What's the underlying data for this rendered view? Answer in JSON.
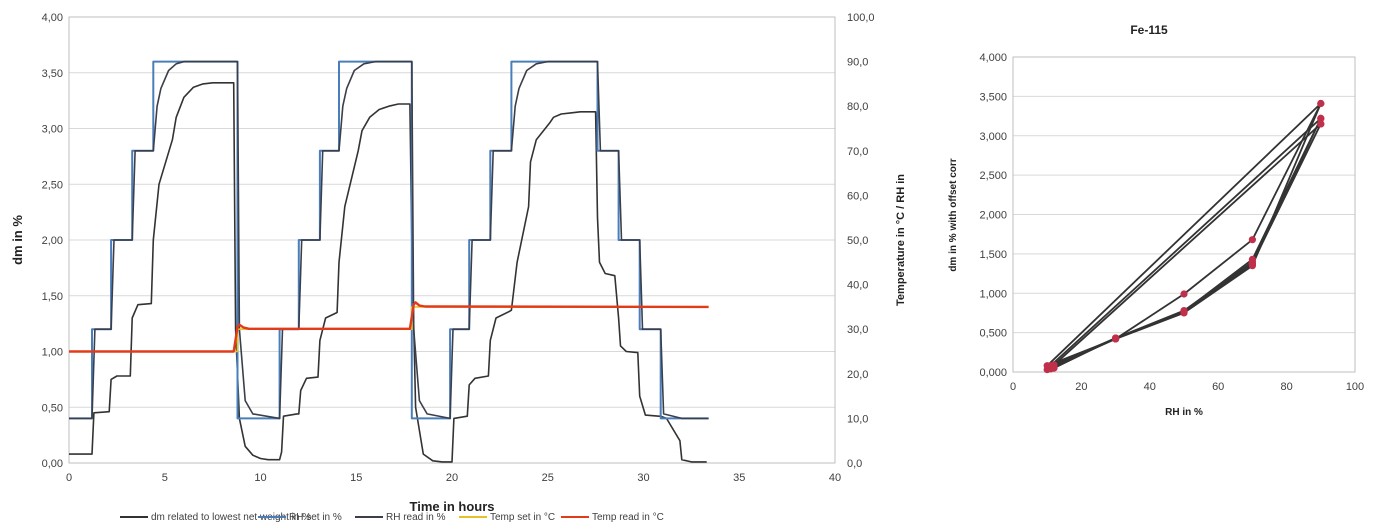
{
  "chart_data": [
    {
      "type": "line",
      "title": "",
      "xlabel": "Time in hours",
      "ylabel": "dm in %",
      "y2label": "Temperature in °C / RH in",
      "xlim": [
        0,
        40
      ],
      "ylim": [
        0,
        4
      ],
      "y2lim": [
        0,
        100
      ],
      "x_ticks": [
        "0",
        "5",
        "10",
        "15",
        "20",
        "25",
        "30",
        "35",
        "40"
      ],
      "y_ticks": [
        "0,00",
        "0,50",
        "1,00",
        "1,50",
        "2,00",
        "2,50",
        "3,00",
        "3,50",
        "4,00"
      ],
      "y2_ticks": [
        "0,0",
        "10,0",
        "20,0",
        "30,0",
        "40,0",
        "50,0",
        "60,0",
        "70,0",
        "80,0",
        "90,0",
        "100,0"
      ],
      "grid": true,
      "legend_position": "bottom",
      "series": [
        {
          "name": "dm  related to lowest net weight in   %",
          "color": "#333333",
          "axis": "left",
          "x": [
            0,
            1.2,
            1.3,
            2.1,
            2.2,
            2.5,
            3.2,
            3.3,
            3.6,
            4.3,
            4.4,
            4.7,
            5.4,
            5.6,
            6.0,
            6.5,
            7.0,
            7.5,
            8.0,
            8.6,
            8.7,
            8.9,
            9.2,
            9.6,
            10.0,
            10.4,
            10.8,
            11.0,
            11.1,
            11.2,
            11.9,
            12.0,
            12.1,
            12.4,
            13.0,
            13.1,
            13.4,
            14.0,
            14.1,
            14.4,
            15.1,
            15.3,
            15.7,
            16.2,
            16.7,
            17.2,
            17.8,
            17.9,
            18.1,
            18.5,
            19.0,
            19.5,
            19.8,
            19.9,
            20.0,
            20.1,
            20.8,
            20.9,
            21.2,
            21.9,
            22.0,
            22.3,
            23.0,
            23.1,
            23.4,
            24.0,
            24.1,
            24.4,
            25.1,
            25.3,
            25.7,
            26.2,
            26.7,
            27.4,
            27.5,
            27.6,
            27.7,
            28.0,
            28.5,
            28.7,
            28.8,
            29.1,
            29.7,
            29.8,
            30.1,
            30.8,
            30.9,
            31.2,
            31.9,
            32.0,
            32.5,
            33.3
          ],
          "y": [
            0.08,
            0.08,
            0.45,
            0.46,
            0.75,
            0.78,
            0.78,
            1.3,
            1.42,
            1.43,
            2.0,
            2.5,
            2.9,
            3.1,
            3.28,
            3.37,
            3.4,
            3.41,
            3.41,
            3.41,
            1.2,
            0.4,
            0.15,
            0.07,
            0.04,
            0.03,
            0.03,
            0.03,
            0.1,
            0.42,
            0.44,
            0.44,
            0.65,
            0.76,
            0.77,
            1.1,
            1.3,
            1.35,
            1.8,
            2.3,
            2.8,
            2.98,
            3.1,
            3.17,
            3.2,
            3.22,
            3.22,
            2.0,
            0.5,
            0.08,
            0.02,
            0.01,
            0.01,
            0.01,
            0.01,
            0.4,
            0.42,
            0.7,
            0.76,
            0.78,
            1.1,
            1.3,
            1.36,
            1.37,
            1.8,
            2.3,
            2.7,
            2.9,
            3.05,
            3.1,
            3.13,
            3.14,
            3.15,
            3.15,
            3.15,
            2.2,
            1.8,
            1.7,
            1.68,
            1.3,
            1.05,
            1.0,
            0.99,
            0.6,
            0.43,
            0.42,
            0.42,
            0.4,
            0.2,
            0.03,
            0.01,
            0.01
          ]
        },
        {
          "name": "RH set in %",
          "color": "#4a7ebb",
          "axis": "right",
          "x": [
            0,
            1.2,
            1.2,
            2.2,
            2.2,
            3.3,
            3.3,
            4.4,
            4.4,
            5.0,
            5.0,
            8.8,
            8.8,
            11.0,
            11.0,
            12.0,
            12.0,
            13.1,
            13.1,
            14.1,
            14.1,
            15.0,
            15.0,
            17.9,
            17.9,
            19.9,
            19.9,
            20.9,
            20.9,
            22.0,
            22.0,
            23.1,
            23.1,
            24.1,
            24.1,
            25.0,
            25.0,
            27.6,
            27.6,
            28.7,
            28.7,
            29.8,
            29.8,
            30.9,
            30.9,
            32.0,
            32.0,
            33.4
          ],
          "y": [
            10,
            10,
            30,
            30,
            50,
            50,
            70,
            70,
            90,
            90,
            90,
            90,
            10,
            10,
            30,
            30,
            50,
            50,
            70,
            70,
            90,
            90,
            90,
            90,
            10,
            10,
            30,
            30,
            50,
            50,
            70,
            70,
            90,
            90,
            90,
            90,
            90,
            90,
            70,
            70,
            50,
            50,
            30,
            30,
            10,
            10,
            10,
            10
          ]
        },
        {
          "name": "RH read in %",
          "color": "#3a3f4a",
          "axis": "right",
          "x": [
            0,
            1.2,
            1.35,
            2.2,
            2.35,
            3.3,
            3.45,
            4.4,
            4.6,
            4.8,
            5.2,
            5.6,
            6.0,
            8.8,
            8.9,
            9.2,
            9.6,
            11.0,
            11.15,
            12.0,
            12.15,
            13.1,
            13.25,
            14.1,
            14.3,
            14.5,
            14.9,
            15.4,
            16.0,
            17.9,
            18.0,
            18.3,
            18.7,
            19.9,
            20.05,
            20.9,
            21.05,
            22.0,
            22.15,
            23.1,
            23.3,
            23.5,
            23.9,
            24.4,
            25.0,
            27.6,
            27.75,
            28.7,
            28.85,
            29.8,
            29.95,
            30.9,
            31.05,
            32.0,
            32.2,
            33.4
          ],
          "y": [
            10,
            10,
            30,
            30,
            50,
            50,
            70,
            70,
            80,
            84,
            88,
            89.5,
            90,
            90,
            30,
            14,
            11,
            10,
            30,
            30,
            50,
            50,
            70,
            70,
            80,
            84,
            88,
            89.5,
            90,
            90,
            30,
            14,
            11,
            10,
            30,
            30,
            50,
            50,
            70,
            70,
            80,
            84,
            88,
            89.5,
            90,
            90,
            70,
            70,
            50,
            50,
            30,
            30,
            11,
            10,
            10,
            10
          ]
        },
        {
          "name": "Temp set in °C",
          "color": "#e6c229",
          "axis": "right",
          "x": [
            0,
            8.8,
            8.8,
            17.9,
            17.9,
            33.4
          ],
          "y": [
            25,
            25,
            30,
            30,
            35,
            35
          ]
        },
        {
          "name": "Temp read in °C",
          "color": "#e23b1a",
          "axis": "right",
          "x": [
            0,
            8.6,
            8.8,
            8.9,
            9.1,
            9.4,
            17.8,
            18.0,
            18.1,
            18.3,
            18.6,
            33.4
          ],
          "y": [
            25,
            25,
            30.5,
            31,
            30.4,
            30.1,
            30.1,
            35.5,
            36,
            35.3,
            35.1,
            35
          ]
        }
      ]
    },
    {
      "type": "scatter",
      "title": "Fe-115",
      "xlabel": "RH in %",
      "ylabel": "dm in % with offset corr",
      "xlim": [
        0,
        100
      ],
      "ylim": [
        0,
        4
      ],
      "x_ticks": [
        "0",
        "20",
        "40",
        "60",
        "80",
        "100"
      ],
      "y_ticks": [
        "0,000",
        "0,500",
        "1,000",
        "1,500",
        "2,000",
        "2,500",
        "3,000",
        "3,500",
        "4,000"
      ],
      "grid": true,
      "marker_color": "#c0304a",
      "line_color": "#333333",
      "series": [
        {
          "x": [
            10,
            30,
            50,
            70,
            90,
            70,
            50,
            30,
            10,
            90
          ],
          "y": [
            0.03,
            0.42,
            0.75,
            1.35,
            3.41,
            1.68,
            0.99,
            0.42,
            0.08,
            3.41
          ]
        },
        {
          "x": [
            11,
            30,
            50,
            70,
            90,
            70,
            50,
            30,
            11,
            90
          ],
          "y": [
            0.04,
            0.43,
            0.76,
            1.37,
            3.22,
            1.43,
            0.77,
            0.42,
            0.08,
            3.22
          ]
        },
        {
          "x": [
            12,
            30,
            50,
            70,
            90,
            70,
            50,
            30,
            12,
            90
          ],
          "y": [
            0.05,
            0.43,
            0.77,
            1.38,
            3.15,
            1.4,
            0.78,
            0.43,
            0.09,
            3.15
          ]
        }
      ]
    }
  ]
}
